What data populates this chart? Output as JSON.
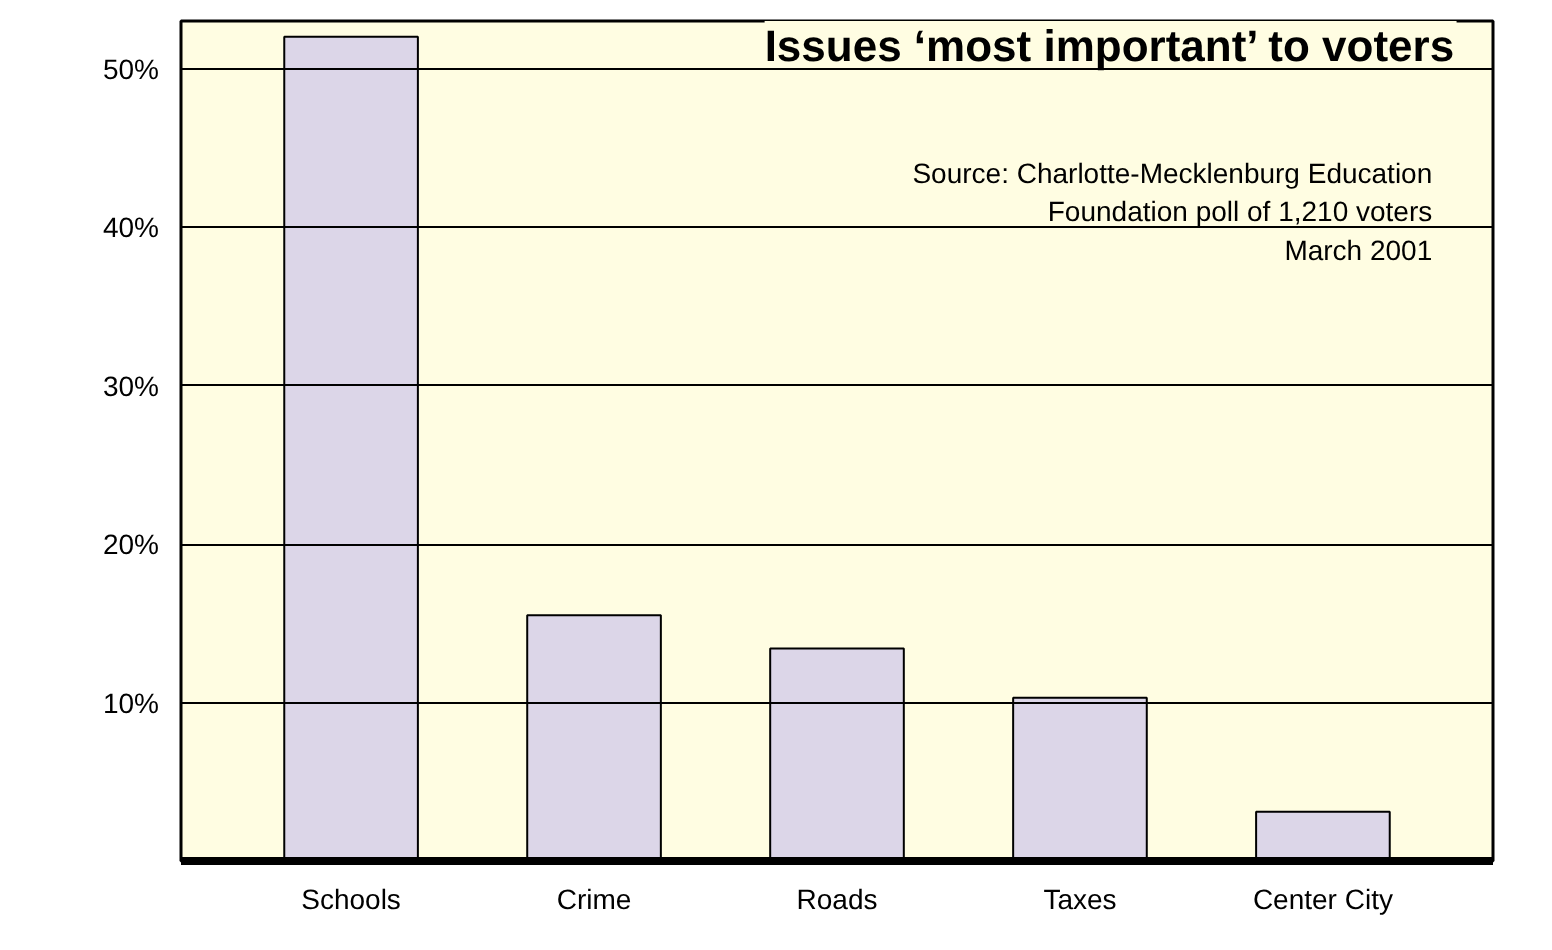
{
  "chart_data": {
    "type": "bar",
    "title": "Issues ‘most important’ to voters",
    "annotations": [
      "Source: Charlotte-Mecklenburg Education\nFoundation poll of 1,210 voters\nMarch 2001"
    ],
    "categories": [
      "Schools",
      "Crime",
      "Roads",
      "Taxes",
      "Center City"
    ],
    "values": [
      52,
      15.5,
      13.4,
      10.3,
      3.1
    ],
    "color": "#dcd6e8",
    "ylim": [
      0,
      53
    ],
    "yticks": [
      {
        "value": 10,
        "label": "10%"
      },
      {
        "value": 20,
        "label": "20%"
      },
      {
        "value": 30,
        "label": "30%"
      },
      {
        "value": 40,
        "label": "40%"
      },
      {
        "value": 50,
        "label": "50%"
      }
    ],
    "grid": "y"
  }
}
